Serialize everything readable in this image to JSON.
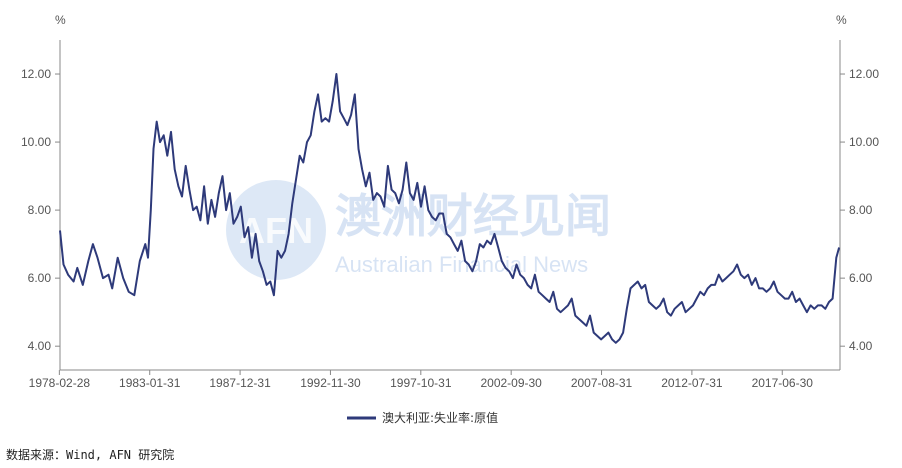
{
  "chart_data": {
    "type": "line",
    "unit_left": "%",
    "unit_right": "%",
    "x_tick_labels": [
      "1978-02-28",
      "1983-01-31",
      "1987-12-31",
      "1992-11-30",
      "1997-10-31",
      "2002-09-30",
      "2007-08-31",
      "2012-07-31",
      "2017-06-30"
    ],
    "y_tick_labels": [
      "4.00",
      "6.00",
      "8.00",
      "10.00",
      "12.00"
    ],
    "ylim": [
      3.3,
      13.0
    ],
    "xlim": [
      1978.16,
      2020.6
    ],
    "grid": false,
    "legend_position": "bottom-center",
    "series": [
      {
        "name": "澳大利亚:失业率:原值",
        "color": "#2e3a7a",
        "points": [
          [
            1978.16,
            7.4
          ],
          [
            1978.35,
            6.4
          ],
          [
            1978.6,
            6.1
          ],
          [
            1978.9,
            5.9
          ],
          [
            1979.1,
            6.3
          ],
          [
            1979.4,
            5.8
          ],
          [
            1979.7,
            6.5
          ],
          [
            1979.95,
            7.0
          ],
          [
            1980.2,
            6.6
          ],
          [
            1980.5,
            6.0
          ],
          [
            1980.8,
            6.1
          ],
          [
            1981.0,
            5.7
          ],
          [
            1981.3,
            6.6
          ],
          [
            1981.6,
            6.0
          ],
          [
            1981.9,
            5.6
          ],
          [
            1982.2,
            5.5
          ],
          [
            1982.5,
            6.5
          ],
          [
            1982.8,
            7.0
          ],
          [
            1982.95,
            6.6
          ],
          [
            1983.1,
            8.0
          ],
          [
            1983.25,
            9.8
          ],
          [
            1983.42,
            10.6
          ],
          [
            1983.6,
            10.0
          ],
          [
            1983.8,
            10.2
          ],
          [
            1984.0,
            9.6
          ],
          [
            1984.2,
            10.3
          ],
          [
            1984.4,
            9.2
          ],
          [
            1984.6,
            8.7
          ],
          [
            1984.8,
            8.4
          ],
          [
            1985.0,
            9.3
          ],
          [
            1985.2,
            8.6
          ],
          [
            1985.4,
            8.0
          ],
          [
            1985.6,
            8.1
          ],
          [
            1985.8,
            7.7
          ],
          [
            1986.0,
            8.7
          ],
          [
            1986.2,
            7.6
          ],
          [
            1986.4,
            8.3
          ],
          [
            1986.6,
            7.8
          ],
          [
            1986.8,
            8.5
          ],
          [
            1987.0,
            9.0
          ],
          [
            1987.2,
            8.0
          ],
          [
            1987.4,
            8.5
          ],
          [
            1987.6,
            7.6
          ],
          [
            1987.8,
            7.8
          ],
          [
            1988.0,
            8.1
          ],
          [
            1988.2,
            7.2
          ],
          [
            1988.4,
            7.5
          ],
          [
            1988.6,
            6.6
          ],
          [
            1988.8,
            7.3
          ],
          [
            1989.0,
            6.5
          ],
          [
            1989.2,
            6.2
          ],
          [
            1989.4,
            5.8
          ],
          [
            1989.6,
            5.9
          ],
          [
            1989.8,
            5.5
          ],
          [
            1990.0,
            6.8
          ],
          [
            1990.2,
            6.6
          ],
          [
            1990.4,
            6.8
          ],
          [
            1990.6,
            7.3
          ],
          [
            1990.8,
            8.2
          ],
          [
            1991.0,
            8.9
          ],
          [
            1991.2,
            9.6
          ],
          [
            1991.4,
            9.4
          ],
          [
            1991.6,
            10.0
          ],
          [
            1991.8,
            10.2
          ],
          [
            1992.0,
            10.9
          ],
          [
            1992.2,
            11.4
          ],
          [
            1992.4,
            10.6
          ],
          [
            1992.6,
            10.7
          ],
          [
            1992.8,
            10.6
          ],
          [
            1993.0,
            11.2
          ],
          [
            1993.2,
            12.0
          ],
          [
            1993.4,
            10.9
          ],
          [
            1993.6,
            10.7
          ],
          [
            1993.8,
            10.5
          ],
          [
            1994.0,
            10.8
          ],
          [
            1994.2,
            11.4
          ],
          [
            1994.4,
            9.8
          ],
          [
            1994.6,
            9.2
          ],
          [
            1994.8,
            8.7
          ],
          [
            1995.0,
            9.1
          ],
          [
            1995.2,
            8.3
          ],
          [
            1995.4,
            8.5
          ],
          [
            1995.6,
            8.4
          ],
          [
            1995.8,
            8.1
          ],
          [
            1996.0,
            9.3
          ],
          [
            1996.2,
            8.6
          ],
          [
            1996.4,
            8.5
          ],
          [
            1996.6,
            8.2
          ],
          [
            1996.8,
            8.6
          ],
          [
            1997.0,
            9.4
          ],
          [
            1997.2,
            8.5
          ],
          [
            1997.4,
            8.3
          ],
          [
            1997.6,
            8.8
          ],
          [
            1997.8,
            8.1
          ],
          [
            1998.0,
            8.7
          ],
          [
            1998.2,
            8.0
          ],
          [
            1998.4,
            7.8
          ],
          [
            1998.6,
            7.7
          ],
          [
            1998.8,
            7.9
          ],
          [
            1999.0,
            7.9
          ],
          [
            1999.2,
            7.3
          ],
          [
            1999.4,
            7.2
          ],
          [
            1999.6,
            7.0
          ],
          [
            1999.8,
            6.8
          ],
          [
            2000.0,
            7.1
          ],
          [
            2000.2,
            6.5
          ],
          [
            2000.4,
            6.4
          ],
          [
            2000.6,
            6.2
          ],
          [
            2000.8,
            6.5
          ],
          [
            2001.0,
            7.0
          ],
          [
            2001.2,
            6.9
          ],
          [
            2001.4,
            7.1
          ],
          [
            2001.6,
            7.0
          ],
          [
            2001.8,
            7.3
          ],
          [
            2002.0,
            6.9
          ],
          [
            2002.2,
            6.5
          ],
          [
            2002.4,
            6.3
          ],
          [
            2002.6,
            6.2
          ],
          [
            2002.8,
            6.0
          ],
          [
            2003.0,
            6.4
          ],
          [
            2003.2,
            6.1
          ],
          [
            2003.4,
            6.0
          ],
          [
            2003.6,
            5.8
          ],
          [
            2003.8,
            5.7
          ],
          [
            2004.0,
            6.1
          ],
          [
            2004.2,
            5.6
          ],
          [
            2004.4,
            5.5
          ],
          [
            2004.6,
            5.4
          ],
          [
            2004.8,
            5.3
          ],
          [
            2005.0,
            5.6
          ],
          [
            2005.2,
            5.1
          ],
          [
            2005.4,
            5.0
          ],
          [
            2005.6,
            5.1
          ],
          [
            2005.8,
            5.2
          ],
          [
            2006.0,
            5.4
          ],
          [
            2006.2,
            4.9
          ],
          [
            2006.4,
            4.8
          ],
          [
            2006.6,
            4.7
          ],
          [
            2006.8,
            4.6
          ],
          [
            2007.0,
            4.9
          ],
          [
            2007.2,
            4.4
          ],
          [
            2007.4,
            4.3
          ],
          [
            2007.6,
            4.2
          ],
          [
            2007.8,
            4.3
          ],
          [
            2008.0,
            4.4
          ],
          [
            2008.2,
            4.2
          ],
          [
            2008.4,
            4.1
          ],
          [
            2008.6,
            4.2
          ],
          [
            2008.8,
            4.4
          ],
          [
            2009.0,
            5.1
          ],
          [
            2009.2,
            5.7
          ],
          [
            2009.4,
            5.8
          ],
          [
            2009.6,
            5.9
          ],
          [
            2009.8,
            5.7
          ],
          [
            2010.0,
            5.8
          ],
          [
            2010.2,
            5.3
          ],
          [
            2010.4,
            5.2
          ],
          [
            2010.6,
            5.1
          ],
          [
            2010.8,
            5.2
          ],
          [
            2011.0,
            5.4
          ],
          [
            2011.2,
            5.0
          ],
          [
            2011.4,
            4.9
          ],
          [
            2011.6,
            5.1
          ],
          [
            2011.8,
            5.2
          ],
          [
            2012.0,
            5.3
          ],
          [
            2012.2,
            5.0
          ],
          [
            2012.4,
            5.1
          ],
          [
            2012.6,
            5.2
          ],
          [
            2012.8,
            5.4
          ],
          [
            2013.0,
            5.6
          ],
          [
            2013.2,
            5.5
          ],
          [
            2013.4,
            5.7
          ],
          [
            2013.6,
            5.8
          ],
          [
            2013.8,
            5.8
          ],
          [
            2014.0,
            6.1
          ],
          [
            2014.2,
            5.9
          ],
          [
            2014.4,
            6.0
          ],
          [
            2014.6,
            6.1
          ],
          [
            2014.8,
            6.2
          ],
          [
            2015.0,
            6.4
          ],
          [
            2015.2,
            6.1
          ],
          [
            2015.4,
            6.0
          ],
          [
            2015.6,
            6.1
          ],
          [
            2015.8,
            5.8
          ],
          [
            2016.0,
            6.0
          ],
          [
            2016.2,
            5.7
          ],
          [
            2016.4,
            5.7
          ],
          [
            2016.6,
            5.6
          ],
          [
            2016.8,
            5.7
          ],
          [
            2017.0,
            5.9
          ],
          [
            2017.2,
            5.6
          ],
          [
            2017.4,
            5.5
          ],
          [
            2017.6,
            5.4
          ],
          [
            2017.8,
            5.4
          ],
          [
            2018.0,
            5.6
          ],
          [
            2018.2,
            5.3
          ],
          [
            2018.4,
            5.4
          ],
          [
            2018.6,
            5.2
          ],
          [
            2018.8,
            5.0
          ],
          [
            2019.0,
            5.2
          ],
          [
            2019.2,
            5.1
          ],
          [
            2019.4,
            5.2
          ],
          [
            2019.6,
            5.2
          ],
          [
            2019.8,
            5.1
          ],
          [
            2020.0,
            5.3
          ],
          [
            2020.2,
            5.4
          ],
          [
            2020.4,
            6.6
          ],
          [
            2020.55,
            6.9
          ]
        ]
      }
    ]
  },
  "watermark": {
    "logo": "AFN",
    "cn": "澳洲财经见闻",
    "en": "Australian Financial News"
  },
  "footer": {
    "source": "数据来源：Wind, AFN 研究院"
  }
}
